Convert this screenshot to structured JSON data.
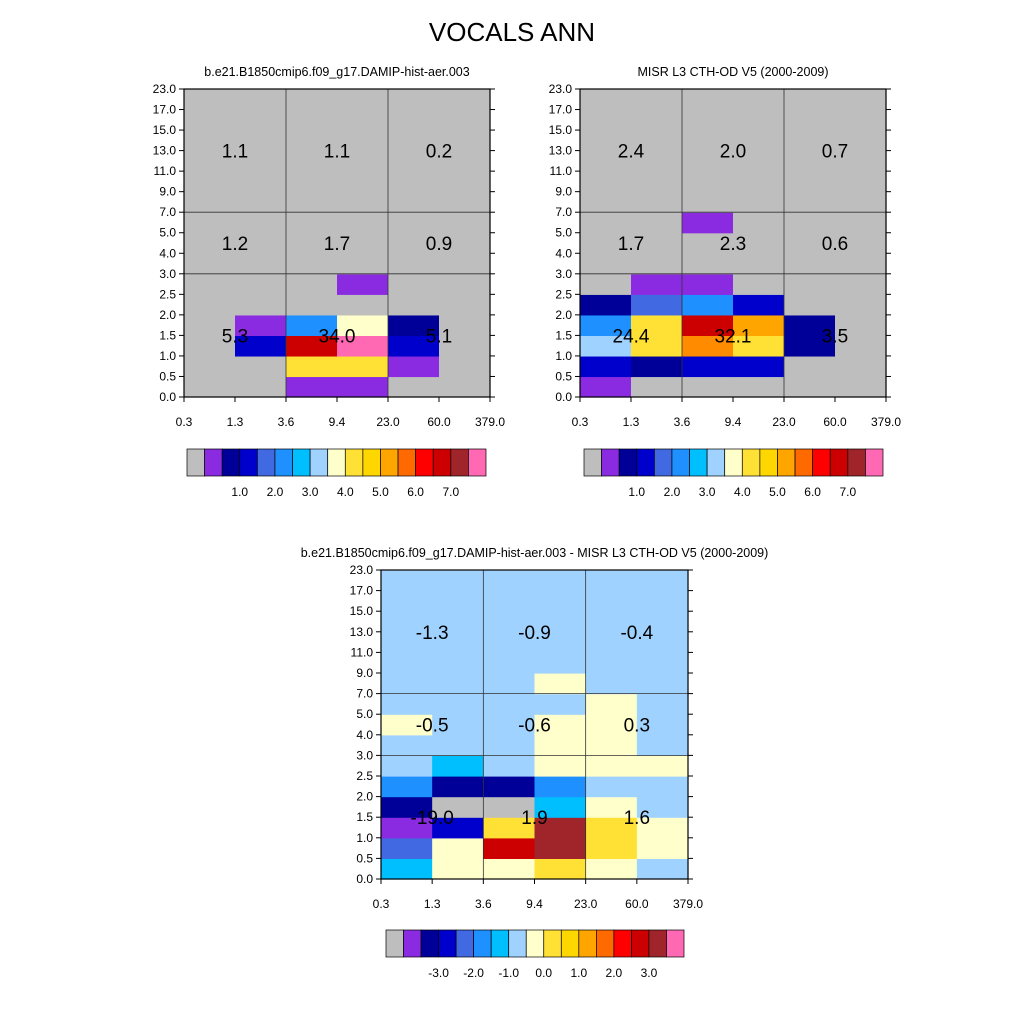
{
  "figure_title": "VOCALS ANN",
  "chart_data": [
    {
      "type": "heatmap",
      "title": "b.e21.B1850cmip6.f09_g17.DAMIP-hist-aer.003",
      "x_tick_labels": [
        "0.3",
        "1.3",
        "3.6",
        "9.4",
        "23.0",
        "60.0",
        "379.0"
      ],
      "y_tick_labels": [
        "0.0",
        "0.5",
        "1.0",
        "1.5",
        "2.0",
        "2.5",
        "3.0",
        "4.0",
        "5.0",
        "7.0",
        "9.0",
        "11.0",
        "13.0",
        "15.0",
        "17.0",
        "23.0"
      ],
      "region_sums": {
        "high": [
          "1.1",
          "1.1",
          "0.2"
        ],
        "mid": [
          "1.2",
          "1.7",
          "0.9"
        ],
        "low": [
          "5.3",
          "34.0",
          "5.1"
        ]
      },
      "cell_colors": [
        [
          "#BEBEBE",
          "#BEBEBE",
          "#8A2BE2",
          "#8A2BE2",
          "#BEBEBE",
          "#BEBEBE"
        ],
        [
          "#BEBEBE",
          "#BEBEBE",
          "#FFE135",
          "#FFE135",
          "#8A2BE2",
          "#BEBEBE"
        ],
        [
          "#BEBEBE",
          "#0000CD",
          "#CC0000",
          "#FF69B4",
          "#0000CD",
          "#BEBEBE"
        ],
        [
          "#BEBEBE",
          "#8A2BE2",
          "#1E90FF",
          "#FFFFCC",
          "#000099",
          "#BEBEBE"
        ],
        [
          "#BEBEBE",
          "#BEBEBE",
          "#BEBEBE",
          "#BEBEBE",
          "#BEBEBE",
          "#BEBEBE"
        ],
        [
          "#BEBEBE",
          "#BEBEBE",
          "#BEBEBE",
          "#8A2BE2",
          "#BEBEBE",
          "#BEBEBE"
        ],
        [
          "#BEBEBE",
          "#BEBEBE",
          "#BEBEBE",
          "#BEBEBE",
          "#BEBEBE",
          "#BEBEBE"
        ],
        [
          "#BEBEBE",
          "#BEBEBE",
          "#BEBEBE",
          "#BEBEBE",
          "#BEBEBE",
          "#BEBEBE"
        ],
        [
          "#BEBEBE",
          "#BEBEBE",
          "#BEBEBE",
          "#BEBEBE",
          "#BEBEBE",
          "#BEBEBE"
        ],
        [
          "#BEBEBE",
          "#BEBEBE",
          "#BEBEBE",
          "#BEBEBE",
          "#BEBEBE",
          "#BEBEBE"
        ],
        [
          "#BEBEBE",
          "#BEBEBE",
          "#BEBEBE",
          "#BEBEBE",
          "#BEBEBE",
          "#BEBEBE"
        ],
        [
          "#BEBEBE",
          "#BEBEBE",
          "#BEBEBE",
          "#BEBEBE",
          "#BEBEBE",
          "#BEBEBE"
        ],
        [
          "#BEBEBE",
          "#BEBEBE",
          "#BEBEBE",
          "#BEBEBE",
          "#BEBEBE",
          "#BEBEBE"
        ],
        [
          "#BEBEBE",
          "#BEBEBE",
          "#BEBEBE",
          "#BEBEBE",
          "#BEBEBE",
          "#BEBEBE"
        ],
        [
          "#BEBEBE",
          "#BEBEBE",
          "#BEBEBE",
          "#BEBEBE",
          "#BEBEBE",
          "#BEBEBE"
        ]
      ],
      "colorbar": {
        "colors": [
          "#BEBEBE",
          "#8A2BE2",
          "#000099",
          "#0000CD",
          "#4169E1",
          "#1E90FF",
          "#00BFFF",
          "#A0D2FF",
          "#FFFFCC",
          "#FFE135",
          "#FFD700",
          "#FFA500",
          "#FF6A00",
          "#FF0000",
          "#CC0000",
          "#A0252A",
          "#FF69B4"
        ],
        "labels": [
          "1.0",
          "2.0",
          "3.0",
          "4.0",
          "5.0",
          "6.0",
          "7.0"
        ]
      }
    },
    {
      "type": "heatmap",
      "title": "MISR L3 CTH-OD V5 (2000-2009)",
      "x_tick_labels": [
        "0.3",
        "1.3",
        "3.6",
        "9.4",
        "23.0",
        "60.0",
        "379.0"
      ],
      "y_tick_labels": [
        "0.0",
        "0.5",
        "1.0",
        "1.5",
        "2.0",
        "2.5",
        "3.0",
        "4.0",
        "5.0",
        "7.0",
        "9.0",
        "11.0",
        "13.0",
        "15.0",
        "17.0",
        "23.0"
      ],
      "region_sums": {
        "high": [
          "2.4",
          "2.0",
          "0.7"
        ],
        "mid": [
          "1.7",
          "2.3",
          "0.6"
        ],
        "low": [
          "24.4",
          "32.1",
          "3.5"
        ]
      },
      "cell_colors": [
        [
          "#8A2BE2",
          "#BEBEBE",
          "#BEBEBE",
          "#BEBEBE",
          "#BEBEBE",
          "#BEBEBE"
        ],
        [
          "#0000CD",
          "#000099",
          "#0000CD",
          "#0000CD",
          "#BEBEBE",
          "#BEBEBE"
        ],
        [
          "#A0D2FF",
          "#FFE135",
          "#FF8C00",
          "#FFE135",
          "#000099",
          "#BEBEBE"
        ],
        [
          "#1E90FF",
          "#FFE135",
          "#CC0000",
          "#FFA500",
          "#000099",
          "#BEBEBE"
        ],
        [
          "#000099",
          "#4169E1",
          "#1E90FF",
          "#0000CD",
          "#BEBEBE",
          "#BEBEBE"
        ],
        [
          "#BEBEBE",
          "#8A2BE2",
          "#8A2BE2",
          "#BEBEBE",
          "#BEBEBE",
          "#BEBEBE"
        ],
        [
          "#BEBEBE",
          "#BEBEBE",
          "#BEBEBE",
          "#BEBEBE",
          "#BEBEBE",
          "#BEBEBE"
        ],
        [
          "#BEBEBE",
          "#BEBEBE",
          "#BEBEBE",
          "#BEBEBE",
          "#BEBEBE",
          "#BEBEBE"
        ],
        [
          "#BEBEBE",
          "#BEBEBE",
          "#8A2BE2",
          "#BEBEBE",
          "#BEBEBE",
          "#BEBEBE"
        ],
        [
          "#BEBEBE",
          "#BEBEBE",
          "#BEBEBE",
          "#BEBEBE",
          "#BEBEBE",
          "#BEBEBE"
        ],
        [
          "#BEBEBE",
          "#BEBEBE",
          "#BEBEBE",
          "#BEBEBE",
          "#BEBEBE",
          "#BEBEBE"
        ],
        [
          "#BEBEBE",
          "#BEBEBE",
          "#BEBEBE",
          "#BEBEBE",
          "#BEBEBE",
          "#BEBEBE"
        ],
        [
          "#BEBEBE",
          "#BEBEBE",
          "#BEBEBE",
          "#BEBEBE",
          "#BEBEBE",
          "#BEBEBE"
        ],
        [
          "#BEBEBE",
          "#BEBEBE",
          "#BEBEBE",
          "#BEBEBE",
          "#BEBEBE",
          "#BEBEBE"
        ],
        [
          "#BEBEBE",
          "#BEBEBE",
          "#BEBEBE",
          "#BEBEBE",
          "#BEBEBE",
          "#BEBEBE"
        ]
      ],
      "colorbar": {
        "colors": [
          "#BEBEBE",
          "#8A2BE2",
          "#000099",
          "#0000CD",
          "#4169E1",
          "#1E90FF",
          "#00BFFF",
          "#A0D2FF",
          "#FFFFCC",
          "#FFE135",
          "#FFD700",
          "#FFA500",
          "#FF6A00",
          "#FF0000",
          "#CC0000",
          "#A0252A",
          "#FF69B4"
        ],
        "labels": [
          "1.0",
          "2.0",
          "3.0",
          "4.0",
          "5.0",
          "6.0",
          "7.0"
        ]
      }
    },
    {
      "type": "heatmap",
      "title": "b.e21.B1850cmip6.f09_g17.DAMIP-hist-aer.003 - MISR L3 CTH-OD V5 (2000-2009)",
      "x_tick_labels": [
        "0.3",
        "1.3",
        "3.6",
        "9.4",
        "23.0",
        "60.0",
        "379.0"
      ],
      "y_tick_labels": [
        "0.0",
        "0.5",
        "1.0",
        "1.5",
        "2.0",
        "2.5",
        "3.0",
        "4.0",
        "5.0",
        "7.0",
        "9.0",
        "11.0",
        "13.0",
        "15.0",
        "17.0",
        "23.0"
      ],
      "region_sums": {
        "high": [
          "-1.3",
          "-0.9",
          "-0.4"
        ],
        "mid": [
          "-0.5",
          "-0.6",
          "0.3"
        ],
        "low": [
          "-19.0",
          "1.9",
          "1.6"
        ]
      },
      "cell_colors": [
        [
          "#00BFFF",
          "#FFFFCC",
          "#FFFFCC",
          "#FFE135",
          "#FFFFCC",
          "#A0D2FF"
        ],
        [
          "#4169E1",
          "#FFFFCC",
          "#CC0000",
          "#A0252A",
          "#FFE135",
          "#FFFFCC"
        ],
        [
          "#8A2BE2",
          "#0000CD",
          "#FFE135",
          "#A0252A",
          "#FFE135",
          "#FFFFCC"
        ],
        [
          "#000099",
          "#BEBEBE",
          "#BEBEBE",
          "#00BFFF",
          "#FFFFCC",
          "#A0D2FF"
        ],
        [
          "#1E90FF",
          "#000099",
          "#000099",
          "#1E90FF",
          "#A0D2FF",
          "#A0D2FF"
        ],
        [
          "#A0D2FF",
          "#00BFFF",
          "#A0D2FF",
          "#FFFFCC",
          "#FFFFCC",
          "#FFFFCC"
        ],
        [
          "#A0D2FF",
          "#A0D2FF",
          "#A0D2FF",
          "#FFFFCC",
          "#FFFFCC",
          "#A0D2FF"
        ],
        [
          "#FFFFCC",
          "#A0D2FF",
          "#A0D2FF",
          "#FFFFCC",
          "#FFFFCC",
          "#A0D2FF"
        ],
        [
          "#A0D2FF",
          "#A0D2FF",
          "#A0D2FF",
          "#A0D2FF",
          "#FFFFCC",
          "#A0D2FF"
        ],
        [
          "#A0D2FF",
          "#A0D2FF",
          "#A0D2FF",
          "#FFFFCC",
          "#A0D2FF",
          "#A0D2FF"
        ],
        [
          "#A0D2FF",
          "#A0D2FF",
          "#A0D2FF",
          "#A0D2FF",
          "#A0D2FF",
          "#A0D2FF"
        ],
        [
          "#A0D2FF",
          "#A0D2FF",
          "#A0D2FF",
          "#A0D2FF",
          "#A0D2FF",
          "#A0D2FF"
        ],
        [
          "#A0D2FF",
          "#A0D2FF",
          "#A0D2FF",
          "#A0D2FF",
          "#A0D2FF",
          "#A0D2FF"
        ],
        [
          "#A0D2FF",
          "#A0D2FF",
          "#A0D2FF",
          "#A0D2FF",
          "#A0D2FF",
          "#A0D2FF"
        ],
        [
          "#A0D2FF",
          "#A0D2FF",
          "#A0D2FF",
          "#A0D2FF",
          "#A0D2FF",
          "#A0D2FF"
        ]
      ],
      "colorbar": {
        "colors": [
          "#BEBEBE",
          "#8A2BE2",
          "#000099",
          "#0000CD",
          "#4169E1",
          "#1E90FF",
          "#00BFFF",
          "#A0D2FF",
          "#FFFFCC",
          "#FFE135",
          "#FFD700",
          "#FFA500",
          "#FF6A00",
          "#FF0000",
          "#CC0000",
          "#A0252A",
          "#FF69B4"
        ],
        "labels": [
          "-3.0",
          "-2.0",
          "-1.0",
          "0.0",
          "1.0",
          "2.0",
          "3.0"
        ]
      }
    }
  ]
}
